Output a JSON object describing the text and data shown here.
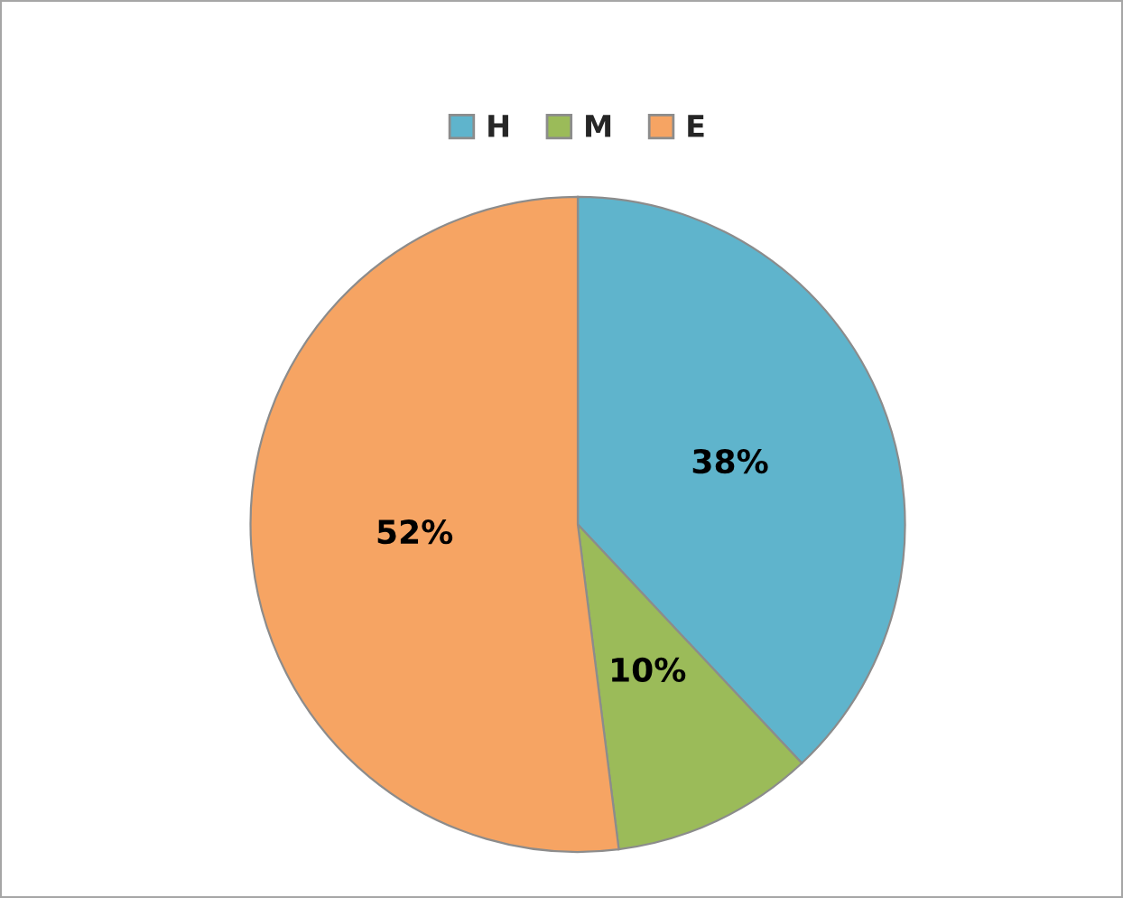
{
  "chart_data": {
    "type": "pie",
    "categories": [
      "H",
      "M",
      "E"
    ],
    "values": [
      38,
      10,
      52
    ],
    "value_labels": [
      "38%",
      "10%",
      "52%"
    ],
    "colors": [
      "#5fb4cc",
      "#9bbb59",
      "#f6a463"
    ],
    "legend": "top"
  }
}
